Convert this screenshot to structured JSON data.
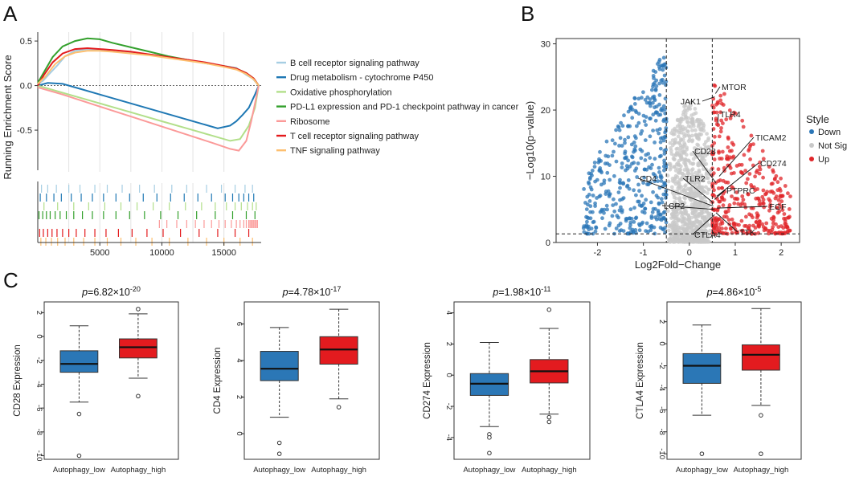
{
  "panels": {
    "A": {
      "letter": "A"
    },
    "B": {
      "letter": "B"
    },
    "C": {
      "letter": "C"
    }
  },
  "chart_data": [
    {
      "id": "A",
      "type": "line",
      "title": "",
      "xlabel": "",
      "ylabel": "Running Enrichment Score",
      "xlim": [
        0,
        18000
      ],
      "ylim": [
        -0.95,
        0.6
      ],
      "xticks": [
        5000,
        10000,
        15000
      ],
      "yticks": [
        -0.5,
        0.0,
        0.5
      ],
      "ytick_labels": [
        "-0.5",
        "0.0",
        "0.5"
      ],
      "vgrid": [
        2500,
        5000,
        7500,
        10000,
        12500,
        15000
      ],
      "legend_position": "right",
      "series": [
        {
          "name": "B cell receptor signaling pathway",
          "color": "#a6cee3",
          "x": [
            0,
            400,
            1000,
            1600,
            2200,
            3000,
            4000,
            5000,
            6000,
            7500,
            9000,
            10500,
            12000,
            13500,
            15000,
            16000,
            16800,
            17300,
            17800
          ],
          "y": [
            0.02,
            0.05,
            0.14,
            0.23,
            0.33,
            0.39,
            0.41,
            0.4,
            0.39,
            0.37,
            0.35,
            0.32,
            0.29,
            0.26,
            0.22,
            0.2,
            0.12,
            0.08,
            0.0
          ],
          "hits": [
            300,
            800,
            1500,
            2500,
            3400,
            4600,
            5600,
            6800,
            8200,
            9400,
            10800,
            12000,
            13600,
            14800,
            15900,
            16700,
            17300
          ]
        },
        {
          "name": "Drug metabolism - cytochrome P450",
          "color": "#1f78b4",
          "x": [
            0,
            800,
            2000,
            3500,
            5000,
            7000,
            9000,
            11000,
            13000,
            14500,
            15500,
            16000,
            16500,
            17000,
            17500,
            17800
          ],
          "y": [
            0.0,
            0.03,
            0.02,
            -0.04,
            -0.1,
            -0.18,
            -0.26,
            -0.34,
            -0.42,
            -0.48,
            -0.45,
            -0.4,
            -0.33,
            -0.25,
            -0.1,
            0.0
          ],
          "hits": [
            200,
            700,
            1300,
            1900,
            2700,
            3500,
            4400,
            5300,
            6300,
            7400,
            8500,
            9600,
            10700,
            11800,
            12900,
            14000,
            15100,
            15700,
            16200,
            16600,
            17000,
            17400
          ]
        },
        {
          "name": "Oxidative phosphorylation",
          "color": "#b2df8a",
          "x": [
            0,
            2000,
            4000,
            6000,
            8000,
            10000,
            12000,
            14000,
            15500,
            16300,
            17000,
            17500,
            17800
          ],
          "y": [
            0.0,
            -0.08,
            -0.16,
            -0.24,
            -0.32,
            -0.4,
            -0.48,
            -0.56,
            -0.62,
            -0.6,
            -0.45,
            -0.25,
            0.0
          ],
          "hits": [
            500,
            1600,
            2900,
            4100,
            5400,
            6700,
            8000,
            9300,
            10600,
            11900,
            13200,
            14300,
            15200,
            15900,
            16400,
            16900,
            17300,
            17600
          ]
        },
        {
          "name": "PD-L1 expression and PD-1 checkpoint pathway in cancer",
          "color": "#33a02c",
          "x": [
            0,
            500,
            1200,
            2000,
            3000,
            4000,
            5000,
            6000,
            7500,
            9000,
            10500,
            12000,
            13500,
            15000,
            16000,
            16800,
            17400,
            17800
          ],
          "y": [
            0.03,
            0.15,
            0.32,
            0.44,
            0.5,
            0.53,
            0.52,
            0.48,
            0.43,
            0.38,
            0.33,
            0.29,
            0.25,
            0.22,
            0.19,
            0.14,
            0.08,
            0.0
          ],
          "hits": [
            100,
            400,
            700,
            1000,
            1400,
            1800,
            2300,
            2900,
            3600,
            4400,
            5300,
            6300,
            7400,
            8600,
            9900,
            11300,
            12800,
            14300,
            15700,
            16800,
            17500
          ]
        },
        {
          "name": "Ribosome",
          "color": "#fb9a99",
          "x": [
            0,
            2000,
            4000,
            6000,
            8000,
            10000,
            12000,
            14000,
            15500,
            16200,
            16800,
            17200,
            17500,
            17800
          ],
          "y": [
            -0.02,
            -0.1,
            -0.19,
            -0.28,
            -0.37,
            -0.46,
            -0.55,
            -0.64,
            -0.71,
            -0.73,
            -0.62,
            -0.4,
            -0.2,
            0.0
          ],
          "hits": [
            9800,
            10400,
            11200,
            12000,
            12700,
            13400,
            14000,
            14600,
            15100,
            15600,
            16000,
            16300,
            16600,
            16800,
            17000,
            17100,
            17200,
            17300,
            17400,
            17500,
            17600,
            17700
          ]
        },
        {
          "name": "T cell receptor signaling pathway",
          "color": "#e31a1c",
          "x": [
            0,
            500,
            1200,
            2000,
            3000,
            4000,
            5000,
            6000,
            7500,
            9000,
            10500,
            12000,
            13500,
            15000,
            16000,
            16800,
            17400,
            17800
          ],
          "y": [
            0.0,
            0.12,
            0.26,
            0.36,
            0.41,
            0.42,
            0.41,
            0.4,
            0.38,
            0.35,
            0.32,
            0.29,
            0.26,
            0.22,
            0.19,
            0.14,
            0.08,
            0.0
          ],
          "hits": [
            150,
            450,
            800,
            1150,
            1550,
            2000,
            2500,
            3100,
            3800,
            4600,
            5500,
            6500,
            7600,
            8800,
            10100,
            11500,
            13000,
            14500,
            15900,
            17000
          ]
        },
        {
          "name": "TNF signaling pathway",
          "color": "#fdbf6f",
          "x": [
            0,
            600,
            1400,
            2200,
            3000,
            4000,
            5000,
            6000,
            7500,
            9000,
            10500,
            12000,
            13500,
            15000,
            16000,
            16800,
            17400,
            17800
          ],
          "y": [
            0.02,
            0.1,
            0.24,
            0.33,
            0.37,
            0.39,
            0.39,
            0.38,
            0.36,
            0.34,
            0.31,
            0.28,
            0.25,
            0.21,
            0.18,
            0.13,
            0.07,
            0.0
          ],
          "hits": [
            250,
            650,
            1100,
            1600,
            2200,
            2900,
            3700,
            4600,
            5600,
            6700,
            7900,
            9200,
            10600,
            12100,
            13600,
            15000,
            16300,
            17300
          ]
        }
      ]
    },
    {
      "id": "B",
      "type": "scatter",
      "title": "",
      "xlabel": "Log2Fold−Change",
      "ylabel": "−Log10(p−value)",
      "xlim": [
        -2.9,
        2.4
      ],
      "ylim": [
        0,
        30.8
      ],
      "xticks": [
        -2,
        -1,
        0,
        1,
        2
      ],
      "yticks": [
        0,
        10,
        20,
        30
      ],
      "thresholds": {
        "x": [
          -0.5,
          0.5
        ],
        "y": 1.3
      },
      "legend_title": "Style",
      "legend_position": "right",
      "groups": [
        {
          "name": "Down",
          "color": "#2a76b7"
        },
        {
          "name": "Not Sig",
          "color": "#c8c8c8"
        },
        {
          "name": "Up",
          "color": "#e0262a"
        }
      ],
      "labels": [
        {
          "text": "MTOR",
          "x": 0.57,
          "y": 22.5
        },
        {
          "text": "JAK1",
          "x": 0.55,
          "y": 22.0
        },
        {
          "text": "TLR4",
          "x": 0.62,
          "y": 18.0
        },
        {
          "text": "TICAM2",
          "x": 0.65,
          "y": 10.0
        },
        {
          "text": "CD28",
          "x": 0.58,
          "y": 9.0
        },
        {
          "text": "CD274",
          "x": 0.6,
          "y": 7.0
        },
        {
          "text": "TLR2",
          "x": 0.52,
          "y": 6.0
        },
        {
          "text": "CD4",
          "x": 0.52,
          "y": 5.5
        },
        {
          "text": "PTPRC",
          "x": 0.55,
          "y": 6.5
        },
        {
          "text": "LCP2",
          "x": 0.55,
          "y": 5.0
        },
        {
          "text": "EGF",
          "x": 0.6,
          "y": 5.2
        },
        {
          "text": "CTLA4",
          "x": 0.55,
          "y": 4.2
        },
        {
          "text": "TTK",
          "x": 0.58,
          "y": 4.5
        }
      ]
    },
    {
      "id": "C1",
      "type": "box",
      "title_p": "p",
      "title_value": "=6.82×10",
      "title_exp": "-20",
      "ylabel": "CD28 Expression",
      "ylim": [
        -10.3,
        2.9
      ],
      "yticks": [
        -10,
        -8,
        -6,
        -4,
        -2,
        0,
        2
      ],
      "categories": [
        "Autophagy_low",
        "Autophagy_high"
      ],
      "boxes": [
        {
          "name": "Autophagy_low",
          "color": "#2b77b6",
          "whisker_low": -5.5,
          "q1": -3.0,
          "median": -2.3,
          "q3": -1.2,
          "whisker_high": 0.9,
          "outliers": [
            -6.5,
            -10.0
          ]
        },
        {
          "name": "Autophagy_high",
          "color": "#e31b1f",
          "whisker_low": -3.5,
          "q1": -1.8,
          "median": -0.9,
          "q3": -0.2,
          "whisker_high": 1.9,
          "outliers": [
            2.3,
            -5.0
          ]
        }
      ]
    },
    {
      "id": "C2",
      "type": "box",
      "title_p": "p",
      "title_value": "=4.78×10",
      "title_exp": "-17",
      "ylabel": "CD4 Expression",
      "ylim": [
        -1.4,
        7.2
      ],
      "yticks": [
        0,
        2,
        4,
        6
      ],
      "categories": [
        "Autophagy_low",
        "Autophagy_high"
      ],
      "boxes": [
        {
          "name": "Autophagy_low",
          "color": "#2b77b6",
          "whisker_low": 0.9,
          "q1": 2.9,
          "median": 3.55,
          "q3": 4.5,
          "whisker_high": 5.8,
          "outliers": [
            -0.5,
            -1.1
          ]
        },
        {
          "name": "Autophagy_high",
          "color": "#e31b1f",
          "whisker_low": 1.9,
          "q1": 3.8,
          "median": 4.6,
          "q3": 5.3,
          "whisker_high": 6.8,
          "outliers": [
            1.45
          ]
        }
      ]
    },
    {
      "id": "C3",
      "type": "box",
      "title_p": "p",
      "title_value": "=1.98×10",
      "title_exp": "-11",
      "ylabel": "CD274 Expression",
      "ylim": [
        -5.4,
        4.7
      ],
      "yticks": [
        -4,
        -2,
        0,
        2,
        4
      ],
      "categories": [
        "Autophagy_low",
        "Autophagy_high"
      ],
      "boxes": [
        {
          "name": "Autophagy_low",
          "color": "#2b77b6",
          "whisker_low": -3.3,
          "q1": -1.3,
          "median": -0.55,
          "q3": 0.1,
          "whisker_high": 2.1,
          "outliers": [
            -3.8,
            -4.0,
            -5.0
          ]
        },
        {
          "name": "Autophagy_high",
          "color": "#e31b1f",
          "whisker_low": -2.5,
          "q1": -0.5,
          "median": 0.25,
          "q3": 1.0,
          "whisker_high": 3.0,
          "outliers": [
            4.2,
            -2.7,
            -3.0
          ]
        }
      ]
    },
    {
      "id": "C4",
      "type": "box",
      "title_p": "p",
      "title_value": "=4.86×10",
      "title_exp": "-5",
      "ylabel": "CTLA4 Expression",
      "ylim": [
        -10.5,
        3.8
      ],
      "yticks": [
        -10,
        -8,
        -6,
        -4,
        -2,
        0,
        2
      ],
      "categories": [
        "Autophagy_low",
        "Autophagy_high"
      ],
      "boxes": [
        {
          "name": "Autophagy_low",
          "color": "#2b77b6",
          "whisker_low": -6.5,
          "q1": -3.6,
          "median": -2.0,
          "q3": -0.9,
          "whisker_high": 1.7,
          "outliers": [
            -10.0
          ]
        },
        {
          "name": "Autophagy_high",
          "color": "#e31b1f",
          "whisker_low": -5.6,
          "q1": -2.4,
          "median": -1.0,
          "q3": -0.1,
          "whisker_high": 3.2,
          "outliers": [
            -6.5,
            -10.0
          ]
        }
      ]
    }
  ]
}
